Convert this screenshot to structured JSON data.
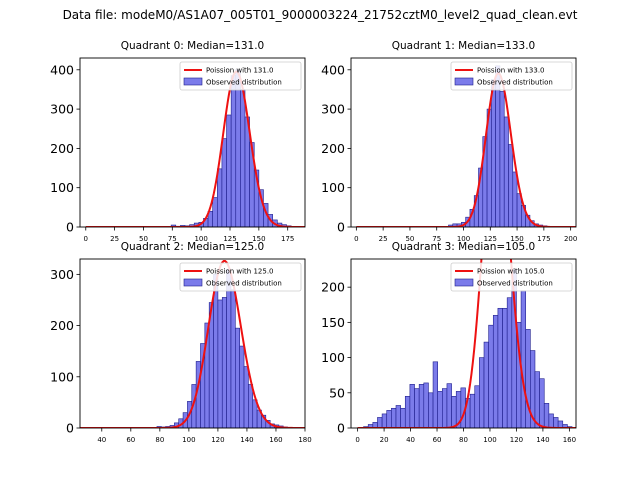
{
  "figure": {
    "suptitle": "Data file: modeM0/AS1A07_005T01_9000003224_21752cztM0_level2_quad_clean.evt"
  },
  "colors": {
    "hist_fill": "#7b7bea",
    "hist_edge": "#1e1e8c",
    "poisson": "#ee1111"
  },
  "chart_data": [
    {
      "type": "bar",
      "title": "Quadrant 0: Median=131.0",
      "poisson_mean": 131.0,
      "poisson_label": "Poission with 131.0",
      "hist_label": "Observed distribution",
      "xlim": [
        -5,
        190
      ],
      "ylim": [
        0,
        430
      ],
      "xticks": [
        0,
        25,
        50,
        75,
        100,
        125,
        150,
        175
      ],
      "yticks": [
        0,
        100,
        200,
        300,
        400
      ],
      "bin_width": 4,
      "bins": [
        [
          74,
          5
        ],
        [
          78,
          2
        ],
        [
          82,
          4
        ],
        [
          86,
          3
        ],
        [
          90,
          6
        ],
        [
          94,
          10
        ],
        [
          98,
          12
        ],
        [
          102,
          22
        ],
        [
          106,
          40
        ],
        [
          110,
          75
        ],
        [
          114,
          148
        ],
        [
          118,
          225
        ],
        [
          122,
          285
        ],
        [
          126,
          385
        ],
        [
          130,
          400
        ],
        [
          134,
          350
        ],
        [
          138,
          280
        ],
        [
          142,
          215
        ],
        [
          146,
          145
        ],
        [
          150,
          95
        ],
        [
          154,
          60
        ],
        [
          158,
          32
        ],
        [
          162,
          18
        ],
        [
          166,
          10
        ],
        [
          170,
          6
        ],
        [
          174,
          3
        ]
      ]
    },
    {
      "type": "bar",
      "title": "Quadrant 1: Median=133.0",
      "poisson_mean": 133.0,
      "poisson_label": "Poission with 133.0",
      "hist_label": "Observed distribution",
      "xlim": [
        -5,
        205
      ],
      "ylim": [
        0,
        430
      ],
      "xticks": [
        0,
        25,
        50,
        75,
        100,
        125,
        150,
        175,
        200
      ],
      "yticks": [
        0,
        100,
        200,
        300,
        400
      ],
      "bin_width": 4,
      "bins": [
        [
          86,
          5
        ],
        [
          90,
          8
        ],
        [
          94,
          8
        ],
        [
          98,
          12
        ],
        [
          102,
          25
        ],
        [
          106,
          45
        ],
        [
          110,
          80
        ],
        [
          114,
          150
        ],
        [
          118,
          230
        ],
        [
          122,
          300
        ],
        [
          126,
          375
        ],
        [
          130,
          410
        ],
        [
          134,
          345
        ],
        [
          138,
          280
        ],
        [
          142,
          210
        ],
        [
          146,
          140
        ],
        [
          150,
          85
        ],
        [
          154,
          55
        ],
        [
          158,
          30
        ],
        [
          162,
          16
        ],
        [
          166,
          8
        ],
        [
          170,
          5
        ],
        [
          174,
          3
        ]
      ]
    },
    {
      "type": "bar",
      "title": "Quadrant 2: Median=125.0",
      "poisson_mean": 125.0,
      "poisson_label": "Poission with 125.0",
      "hist_label": "Observed distribution",
      "xlim": [
        25,
        180
      ],
      "ylim": [
        0,
        330
      ],
      "xticks": [
        40,
        60,
        80,
        100,
        120,
        140,
        160,
        180
      ],
      "yticks": [
        0,
        100,
        200,
        300
      ],
      "bin_width": 3,
      "bins": [
        [
          78,
          3
        ],
        [
          81,
          2
        ],
        [
          84,
          3
        ],
        [
          87,
          5
        ],
        [
          90,
          10
        ],
        [
          93,
          18
        ],
        [
          96,
          30
        ],
        [
          99,
          52
        ],
        [
          102,
          85
        ],
        [
          105,
          130
        ],
        [
          108,
          165
        ],
        [
          111,
          205
        ],
        [
          114,
          245
        ],
        [
          117,
          300
        ],
        [
          120,
          250
        ],
        [
          123,
          255
        ],
        [
          126,
          310
        ],
        [
          129,
          270
        ],
        [
          132,
          195
        ],
        [
          135,
          160
        ],
        [
          138,
          120
        ],
        [
          141,
          85
        ],
        [
          144,
          55
        ],
        [
          147,
          35
        ],
        [
          150,
          25
        ],
        [
          153,
          15
        ],
        [
          156,
          8
        ],
        [
          159,
          6
        ],
        [
          162,
          4
        ],
        [
          165,
          2
        ]
      ]
    },
    {
      "type": "bar",
      "title": "Quadrant 3: Median=105.0",
      "poisson_mean": 105.0,
      "poisson_label": "Poission with 105.0",
      "hist_label": "Observed distribution",
      "xlim": [
        -5,
        165
      ],
      "ylim": [
        0,
        240
      ],
      "xticks": [
        0,
        20,
        40,
        60,
        80,
        100,
        120,
        140,
        160
      ],
      "yticks": [
        0,
        50,
        100,
        150,
        200
      ],
      "bin_width": 3.5,
      "bins": [
        [
          4.5,
          2
        ],
        [
          8,
          5
        ],
        [
          11.5,
          8
        ],
        [
          15,
          15
        ],
        [
          18.5,
          20
        ],
        [
          22,
          25
        ],
        [
          25.5,
          28
        ],
        [
          29,
          32
        ],
        [
          32.5,
          28
        ],
        [
          36,
          45
        ],
        [
          39.5,
          62
        ],
        [
          43,
          56
        ],
        [
          46.5,
          62
        ],
        [
          50,
          64
        ],
        [
          53.5,
          50
        ],
        [
          57,
          94
        ],
        [
          60.5,
          52
        ],
        [
          64,
          56
        ],
        [
          67.5,
          63
        ],
        [
          71,
          45
        ],
        [
          74.5,
          52
        ],
        [
          78,
          57
        ],
        [
          81.5,
          42
        ],
        [
          85,
          48
        ],
        [
          88.5,
          60
        ],
        [
          92,
          100
        ],
        [
          95.5,
          122
        ],
        [
          99,
          146
        ],
        [
          102.5,
          160
        ],
        [
          106,
          170
        ],
        [
          109.5,
          170
        ],
        [
          113,
          185
        ],
        [
          116.5,
          225
        ],
        [
          120,
          150
        ],
        [
          123.5,
          195
        ],
        [
          127,
          140
        ],
        [
          130.5,
          110
        ],
        [
          134,
          80
        ],
        [
          137.5,
          70
        ],
        [
          141,
          35
        ],
        [
          144.5,
          20
        ],
        [
          148,
          15
        ],
        [
          151.5,
          10
        ],
        [
          155,
          5
        ],
        [
          158.5,
          2
        ]
      ]
    }
  ]
}
